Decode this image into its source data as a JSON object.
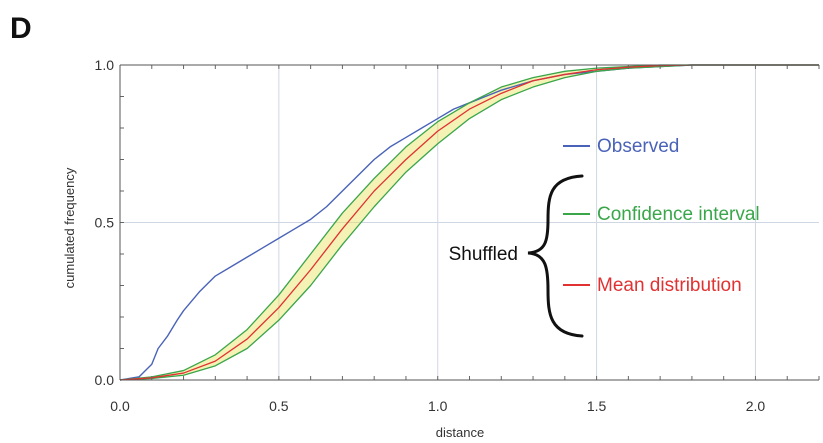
{
  "panel_label": "D",
  "chart_data": {
    "type": "line",
    "title": "",
    "xlabel": "distance",
    "ylabel": "cumulated frequency",
    "xlim": [
      0.0,
      2.2
    ],
    "ylim": [
      0.0,
      1.0
    ],
    "x_ticks": [
      "0.0",
      "0.5",
      "1.0",
      "1.5",
      "2.0"
    ],
    "y_ticks": [
      "0.0",
      "0.5",
      "1.0"
    ],
    "grid": true,
    "series": [
      {
        "name": "Observed",
        "color": "#4a63b8",
        "x": [
          0.0,
          0.06,
          0.1,
          0.12,
          0.15,
          0.18,
          0.2,
          0.25,
          0.3,
          0.35,
          0.4,
          0.45,
          0.5,
          0.55,
          0.6,
          0.65,
          0.7,
          0.75,
          0.8,
          0.85,
          0.9,
          0.95,
          1.0,
          1.05,
          1.1,
          1.15,
          1.2,
          1.3,
          1.4,
          1.5,
          1.6,
          1.7,
          1.8,
          2.0,
          2.2
        ],
        "y": [
          0.0,
          0.01,
          0.05,
          0.1,
          0.14,
          0.19,
          0.22,
          0.28,
          0.33,
          0.36,
          0.39,
          0.42,
          0.45,
          0.48,
          0.51,
          0.55,
          0.6,
          0.65,
          0.7,
          0.74,
          0.77,
          0.8,
          0.83,
          0.86,
          0.88,
          0.9,
          0.92,
          0.95,
          0.97,
          0.98,
          0.99,
          0.995,
          1.0,
          1.0,
          1.0
        ]
      },
      {
        "name": "Confidence interval",
        "color": "#3aa64a",
        "x": [
          0.0,
          0.1,
          0.2,
          0.3,
          0.4,
          0.5,
          0.6,
          0.7,
          0.8,
          0.9,
          1.0,
          1.1,
          1.2,
          1.3,
          1.4,
          1.5,
          1.6,
          1.7,
          1.8,
          2.0,
          2.2
        ],
        "y": [
          0.0,
          0.01,
          0.03,
          0.08,
          0.16,
          0.27,
          0.4,
          0.53,
          0.64,
          0.74,
          0.82,
          0.88,
          0.93,
          0.96,
          0.98,
          0.99,
          0.995,
          1.0,
          1.0,
          1.0,
          1.0
        ]
      },
      {
        "name": "Confidence interval",
        "color": "#3aa64a",
        "x": [
          0.0,
          0.1,
          0.2,
          0.3,
          0.4,
          0.5,
          0.6,
          0.7,
          0.8,
          0.9,
          1.0,
          1.1,
          1.2,
          1.3,
          1.4,
          1.5,
          1.6,
          1.7,
          1.8,
          2.0,
          2.2
        ],
        "y": [
          0.0,
          0.005,
          0.015,
          0.045,
          0.1,
          0.19,
          0.3,
          0.43,
          0.55,
          0.66,
          0.75,
          0.83,
          0.89,
          0.93,
          0.96,
          0.98,
          0.99,
          0.995,
          1.0,
          1.0,
          1.0
        ]
      },
      {
        "name": "Mean distribution",
        "color": "#e03232",
        "x": [
          0.0,
          0.1,
          0.2,
          0.3,
          0.4,
          0.5,
          0.6,
          0.7,
          0.8,
          0.9,
          1.0,
          1.1,
          1.2,
          1.3,
          1.4,
          1.5,
          1.6,
          1.7,
          1.8,
          2.0,
          2.2
        ],
        "y": [
          0.0,
          0.007,
          0.022,
          0.06,
          0.13,
          0.23,
          0.35,
          0.48,
          0.6,
          0.7,
          0.79,
          0.86,
          0.91,
          0.95,
          0.97,
          0.985,
          0.993,
          0.998,
          1.0,
          1.0,
          1.0
        ]
      }
    ],
    "legend": {
      "placement": "right",
      "group_label": "Shuffled",
      "entries": [
        {
          "label": "Observed",
          "color": "#4a63b8"
        },
        {
          "label": "Confidence interval",
          "color": "#3aa64a"
        },
        {
          "label": "Mean distribution",
          "color": "#e03232"
        }
      ]
    }
  }
}
